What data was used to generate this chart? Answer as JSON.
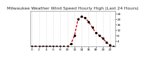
{
  "title": "Milwaukee Weather Wind Speed Hourly High (Last 24 Hours)",
  "background_color": "#ffffff",
  "plot_bg_color": "#ffffff",
  "grid_color": "#bbbbbb",
  "line_color": "#cc0000",
  "marker_color": "#000000",
  "hours": [
    0,
    1,
    2,
    3,
    4,
    5,
    6,
    7,
    8,
    9,
    10,
    11,
    12,
    13,
    14,
    15,
    16,
    17,
    18,
    19,
    20,
    21,
    22,
    23
  ],
  "values": [
    0,
    0,
    0,
    0,
    0,
    0,
    0,
    0,
    0,
    0,
    0,
    2,
    8,
    20,
    22,
    21,
    18,
    14,
    10,
    8,
    6,
    3,
    1,
    0
  ],
  "ylim": [
    0,
    26
  ],
  "yticks_right": [
    4,
    8,
    12,
    16,
    20,
    24
  ],
  "ytick_labels_right": [
    "4",
    "8",
    "12",
    "16",
    "20",
    "24"
  ],
  "xtick_positions": [
    0,
    2,
    4,
    6,
    8,
    10,
    12,
    14,
    16,
    18,
    20,
    22
  ],
  "xtick_labels": [
    "0",
    "2",
    "4",
    "6",
    "8",
    "10",
    "12",
    "14",
    "16",
    "18",
    "20",
    "22"
  ],
  "title_fontsize": 4.5,
  "tick_fontsize": 3.2,
  "line_width": 1.0,
  "marker_size": 1.5
}
